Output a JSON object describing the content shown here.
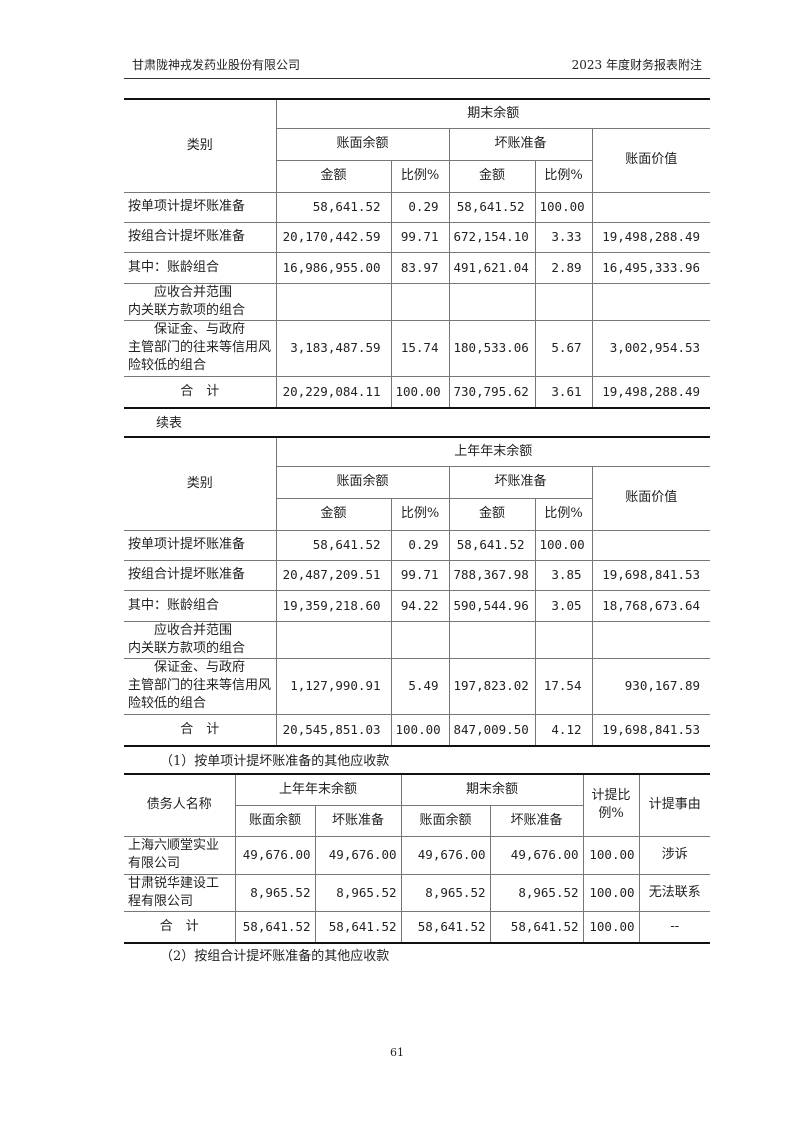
{
  "header": {
    "left": "甘肃陇神戎发药业股份有限公司",
    "right": "2023 年度财务报表附注"
  },
  "table1": {
    "period": "期末余额",
    "category": "类别",
    "book_balance": "账面余额",
    "bad_debt": "坏账准备",
    "book_value": "账面价值",
    "amount": "金额",
    "ratio": "比例%",
    "rows": [
      {
        "label": "按单项计提坏账准备",
        "bb": "58,641.52",
        "bbr": "0.29",
        "bd": "58,641.52",
        "bdr": "100.00",
        "bv": ""
      },
      {
        "label": "按组合计提坏账准备",
        "bb": "20,170,442.59",
        "bbr": "99.71",
        "bd": "672,154.10",
        "bdr": "3.33",
        "bv": "19,498,288.49"
      },
      {
        "label": "其中：账龄组合",
        "bb": "16,986,955.00",
        "bbr": "83.97",
        "bd": "491,621.04",
        "bdr": "2.89",
        "bv": "16,495,333.96"
      },
      {
        "label1": "应收合并范围",
        "label2": "内关联方款项的组合",
        "bb": "",
        "bbr": "",
        "bd": "",
        "bdr": "",
        "bv": ""
      },
      {
        "label1": "保证金、与政府",
        "label2": "主管部门的往来等信用风险较低的组合",
        "bb": "3,183,487.59",
        "bbr": "15.74",
        "bd": "180,533.06",
        "bdr": "5.67",
        "bv": "3,002,954.53"
      },
      {
        "label": "合　计",
        "bb": "20,229,084.11",
        "bbr": "100.00",
        "bd": "730,795.62",
        "bdr": "3.61",
        "bv": "19,498,288.49"
      }
    ]
  },
  "continued": "续表",
  "table2": {
    "period": "上年年末余额",
    "category": "类别",
    "book_balance": "账面余额",
    "bad_debt": "坏账准备",
    "book_value": "账面价值",
    "amount": "金额",
    "ratio": "比例%",
    "rows": [
      {
        "label": "按单项计提坏账准备",
        "bb": "58,641.52",
        "bbr": "0.29",
        "bd": "58,641.52",
        "bdr": "100.00",
        "bv": ""
      },
      {
        "label": "按组合计提坏账准备",
        "bb": "20,487,209.51",
        "bbr": "99.71",
        "bd": "788,367.98",
        "bdr": "3.85",
        "bv": "19,698,841.53"
      },
      {
        "label": "其中：账龄组合",
        "bb": "19,359,218.60",
        "bbr": "94.22",
        "bd": "590,544.96",
        "bdr": "3.05",
        "bv": "18,768,673.64"
      },
      {
        "label1": "应收合并范围",
        "label2": "内关联方款项的组合",
        "bb": "",
        "bbr": "",
        "bd": "",
        "bdr": "",
        "bv": ""
      },
      {
        "label1": "保证金、与政府",
        "label2": "主管部门的往来等信用风险较低的组合",
        "bb": "1,127,990.91",
        "bbr": "5.49",
        "bd": "197,823.02",
        "bdr": "17.54",
        "bv": "930,167.89"
      },
      {
        "label": "合　计",
        "bb": "20,545,851.03",
        "bbr": "100.00",
        "bd": "847,009.50",
        "bdr": "4.12",
        "bv": "19,698,841.53"
      }
    ]
  },
  "note1": "（1）按单项计提坏账准备的其他应收款",
  "table3": {
    "debtor": "债务人名称",
    "prev": "上年年末余额",
    "end": "期末余额",
    "book_balance": "账面余额",
    "bad_debt": "坏账准备",
    "ratio": "计提比例%",
    "reason": "计提事由",
    "rows": [
      {
        "name": "上海六顺堂实业有限公司",
        "pbb": "49,676.00",
        "pbd": "49,676.00",
        "ebb": "49,676.00",
        "ebd": "49,676.00",
        "r": "100.00",
        "reason": "涉诉"
      },
      {
        "name": "甘肃锐华建设工程有限公司",
        "pbb": "8,965.52",
        "pbd": "8,965.52",
        "ebb": "8,965.52",
        "ebd": "8,965.52",
        "r": "100.00",
        "reason": "无法联系"
      },
      {
        "name": "合　计",
        "pbb": "58,641.52",
        "pbd": "58,641.52",
        "ebb": "58,641.52",
        "ebd": "58,641.52",
        "r": "100.00",
        "reason": "--"
      }
    ]
  },
  "note2": "（2）按组合计提坏账准备的其他应收款",
  "page_number": "61"
}
